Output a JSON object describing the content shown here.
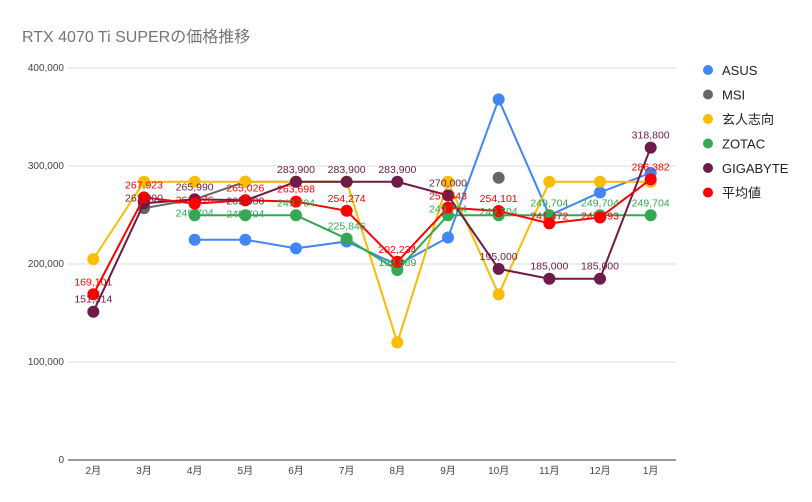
{
  "chart_data": {
    "type": "line",
    "title": "RTX 4070 Ti SUPERの価格推移",
    "xlabel": "",
    "ylabel": "",
    "ylim": [
      0,
      400000
    ],
    "yticks": [
      "0",
      "100,000",
      "200,000",
      "300,000",
      "400,000"
    ],
    "ytick_values": [
      0,
      100000,
      200000,
      300000,
      400000
    ],
    "grid": true,
    "legend_position": "right",
    "categories": [
      "2月",
      "3月",
      "4月",
      "5月",
      "6月",
      "7月",
      "8月",
      "9月",
      "10月",
      "11月",
      "12月",
      "1月"
    ],
    "series": [
      {
        "name": "ASUS",
        "color": "#4285f4",
        "labels": false,
        "values": [
          null,
          null,
          224800,
          224800,
          216000,
          223000,
          199000,
          227000,
          368000,
          249700,
          273000,
          293000
        ]
      },
      {
        "name": "MSI",
        "color": "#666666",
        "labels": false,
        "values": [
          null,
          257000,
          265990,
          283900,
          283900,
          null,
          null,
          null,
          288000,
          null,
          null,
          null
        ]
      },
      {
        "name": "玄人志向",
        "color": "#fbbc04",
        "labels": false,
        "values": [
          205000,
          283900,
          283900,
          283900,
          283900,
          283900,
          120000,
          283900,
          169000,
          283900,
          283900,
          283900
        ]
      },
      {
        "name": "ZOTAC",
        "color": "#34a853",
        "labels": true,
        "values": [
          null,
          null,
          249704,
          249704,
          249704,
          225846,
          193889,
          249704,
          249704,
          249704,
          249704,
          249704
        ]
      },
      {
        "name": "GIGABYTE",
        "color": "#6d1b47",
        "labels": true,
        "values": [
          151314,
          262000,
          265990,
          265000,
          283900,
          283900,
          283900,
          270000,
          195000,
          185000,
          185000,
          318800
        ]
      },
      {
        "name": "平均値",
        "color": "#ff0000",
        "labels": true,
        "values": [
          169101,
          267923,
          261576,
          265026,
          263698,
          254274,
          202234,
          257543,
          254101,
          241472,
          247493,
          286382
        ]
      }
    ]
  }
}
